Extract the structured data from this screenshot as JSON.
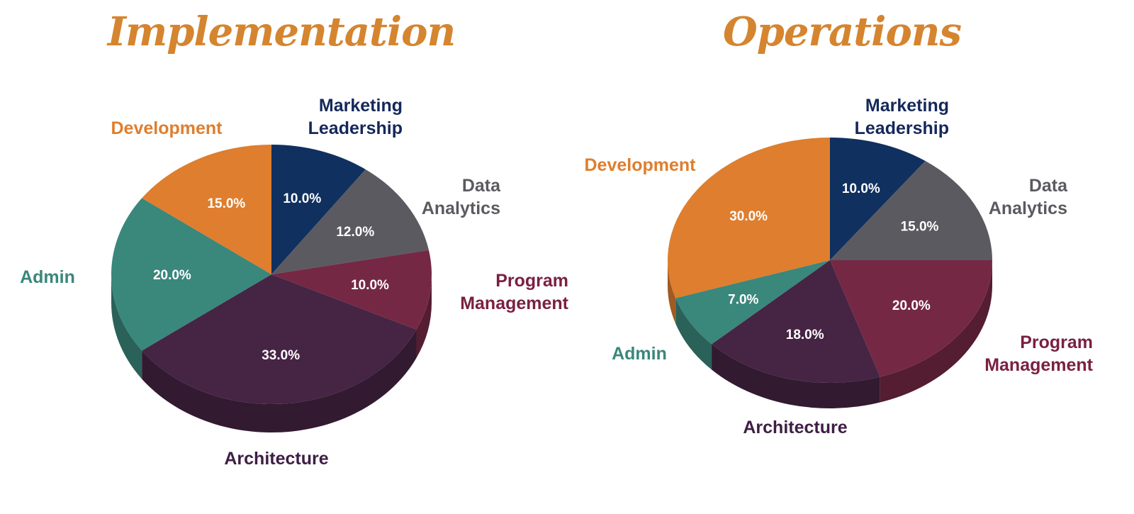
{
  "chart_data": [
    {
      "type": "pie",
      "title": "Implementation",
      "slices": [
        {
          "label": "Marketing Leadership",
          "value": 10.0,
          "value_label": "10.0%",
          "color": "#10305f"
        },
        {
          "label": "Data Analytics",
          "value": 12.0,
          "value_label": "12.0%",
          "color": "#5b5a60"
        },
        {
          "label": "Program Management",
          "value": 10.0,
          "value_label": "10.0%",
          "color": "#752844"
        },
        {
          "label": "Architecture",
          "value": 33.0,
          "value_label": "33.0%",
          "color": "#462444"
        },
        {
          "label": "Admin",
          "value": 20.0,
          "value_label": "20.0%",
          "color": "#3a877c"
        },
        {
          "label": "Development",
          "value": 15.0,
          "value_label": "15.0%",
          "color": "#de7e2e"
        }
      ]
    },
    {
      "type": "pie",
      "title": "Operations",
      "slices": [
        {
          "label": "Marketing Leadership",
          "value": 10.0,
          "value_label": "10.0%",
          "color": "#10305f"
        },
        {
          "label": "Data Analytics",
          "value": 15.0,
          "value_label": "15.0%",
          "color": "#5b5a60"
        },
        {
          "label": "Program Management",
          "value": 20.0,
          "value_label": "20.0%",
          "color": "#752844"
        },
        {
          "label": "Architecture",
          "value": 18.0,
          "value_label": "18.0%",
          "color": "#462444"
        },
        {
          "label": "Admin",
          "value": 7.0,
          "value_label": "7.0%",
          "color": "#3a877c"
        },
        {
          "label": "Development",
          "value": 30.0,
          "value_label": "30.0%",
          "color": "#de7e2e"
        }
      ]
    }
  ],
  "colors": {
    "title": "#d5852f",
    "label_marketing": "#14285a",
    "label_data": "#5b5a60",
    "label_program": "#7a2042",
    "label_architecture": "#3f1e45",
    "label_admin": "#3a877c",
    "label_development": "#de7e2e"
  }
}
